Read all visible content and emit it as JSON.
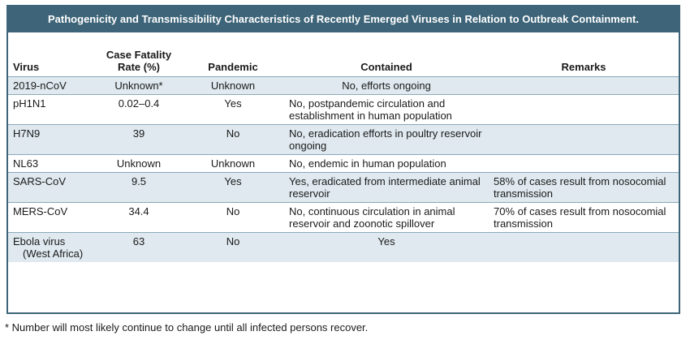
{
  "title": "Pathogenicity and Transmissibility Characteristics of Recently Emerged Viruses in Relation to Outbreak Containment.",
  "columns": {
    "virus": "Virus",
    "cfr_line1": "Case Fatality",
    "cfr_line2": "Rate (%)",
    "pandemic": "Pandemic",
    "contained": "Contained",
    "remarks": "Remarks"
  },
  "rows": [
    {
      "virus": "2019-nCoV",
      "virus2": "",
      "cfr": "Unknown*",
      "pandemic": "Unknown",
      "contained": "No, efforts ongoing",
      "remarks": ""
    },
    {
      "virus": "pH1N1",
      "virus2": "",
      "cfr": "0.02–0.4",
      "pandemic": "Yes",
      "contained": "No, postpandemic circulation and establishment in human population",
      "remarks": ""
    },
    {
      "virus": "H7N9",
      "virus2": "",
      "cfr": "39",
      "pandemic": "No",
      "contained": "No, eradication efforts in poultry reservoir ongoing",
      "remarks": ""
    },
    {
      "virus": "NL63",
      "virus2": "",
      "cfr": "Unknown",
      "pandemic": "Unknown",
      "contained": "No, endemic in human population",
      "remarks": ""
    },
    {
      "virus": "SARS-CoV",
      "virus2": "",
      "cfr": "9.5",
      "pandemic": "Yes",
      "contained": "Yes, eradicated from intermediate animal reservoir",
      "remarks": "58% of cases result from nosocomial transmission"
    },
    {
      "virus": "MERS-CoV",
      "virus2": "",
      "cfr": "34.4",
      "pandemic": "No",
      "contained": "No, continuous circulation in animal reservoir and zoonotic spillover",
      "remarks": "70% of cases result from nosocomial transmission"
    },
    {
      "virus": "Ebola virus",
      "virus2": "(West Africa)",
      "cfr": "63",
      "pandemic": "No",
      "contained": "Yes",
      "remarks": ""
    }
  ],
  "footnote": "* Number will most likely continue to change until all infected persons recover."
}
